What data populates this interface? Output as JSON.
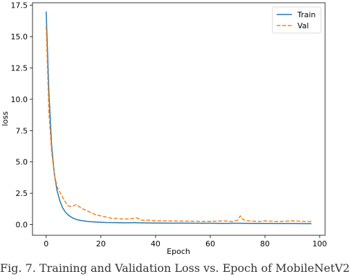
{
  "chart_data": {
    "type": "line",
    "title": "",
    "xlabel": "Epoch",
    "ylabel": "loss",
    "xlim": [
      -5,
      102
    ],
    "ylim": [
      -0.85,
      17.7
    ],
    "xticks": [
      0,
      20,
      40,
      60,
      80,
      100
    ],
    "xtick_labels": [
      "0",
      "20",
      "40",
      "60",
      "80",
      "100"
    ],
    "yticks": [
      0.0,
      2.5,
      5.0,
      7.5,
      10.0,
      12.5,
      15.0,
      17.5
    ],
    "ytick_labels": [
      "0.0",
      "2.5",
      "5.0",
      "7.5",
      "10.0",
      "12.5",
      "15.0",
      "17.5"
    ],
    "grid": false,
    "legend_position": "top-right",
    "series": [
      {
        "name": "Train",
        "color": "#1f77b4",
        "style": "solid",
        "x": [
          0,
          1,
          2,
          3,
          4,
          5,
          6,
          7,
          8,
          9,
          10,
          11,
          12,
          13,
          14,
          15,
          16,
          18,
          20,
          22,
          25,
          28,
          30,
          32,
          35,
          40,
          45,
          50,
          55,
          60,
          65,
          70,
          75,
          80,
          85,
          90,
          95,
          97
        ],
        "y": [
          17.0,
          10.5,
          6.3,
          4.0,
          2.7,
          1.9,
          1.35,
          1.0,
          0.78,
          0.62,
          0.5,
          0.42,
          0.36,
          0.32,
          0.29,
          0.26,
          0.24,
          0.21,
          0.19,
          0.17,
          0.16,
          0.15,
          0.15,
          0.16,
          0.14,
          0.13,
          0.12,
          0.12,
          0.11,
          0.11,
          0.1,
          0.11,
          0.1,
          0.1,
          0.09,
          0.09,
          0.08,
          0.08
        ]
      },
      {
        "name": "Val",
        "color": "#ff7f0e",
        "style": "dashed",
        "x": [
          0,
          1,
          2,
          3,
          4,
          5,
          6,
          7,
          8,
          9,
          10,
          11,
          12,
          13,
          14,
          15,
          16,
          18,
          20,
          22,
          24,
          26,
          28,
          30,
          32,
          33,
          35,
          38,
          40,
          45,
          50,
          55,
          60,
          65,
          68,
          70,
          71,
          72,
          74,
          78,
          80,
          85,
          90,
          95,
          97
        ],
        "y": [
          15.8,
          9.0,
          5.8,
          4.0,
          3.0,
          2.6,
          2.2,
          1.8,
          1.5,
          1.45,
          1.5,
          1.6,
          1.45,
          1.3,
          1.2,
          1.1,
          1.0,
          0.8,
          0.7,
          0.6,
          0.5,
          0.5,
          0.45,
          0.45,
          0.5,
          0.55,
          0.35,
          0.35,
          0.3,
          0.3,
          0.28,
          0.27,
          0.26,
          0.3,
          0.25,
          0.35,
          0.7,
          0.4,
          0.3,
          0.25,
          0.3,
          0.25,
          0.3,
          0.25,
          0.25
        ]
      }
    ]
  },
  "caption": "Fig. 7. Training and Validation Loss vs. Epoch of MobileNetV2"
}
